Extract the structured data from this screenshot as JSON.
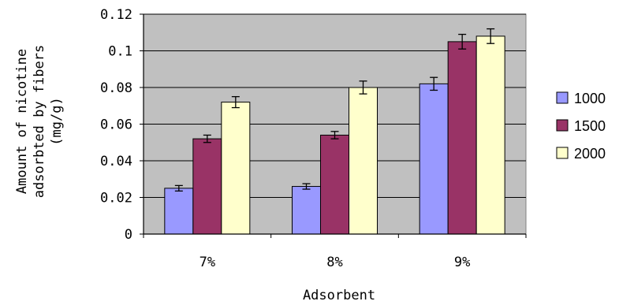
{
  "chart_data": {
    "type": "bar",
    "title": "",
    "xlabel": "Adsorbent",
    "ylabel_lines": [
      "Amount of nicotine",
      "adsorbted by fibers",
      "(mg/g)"
    ],
    "categories": [
      "7%",
      "8%",
      "9%"
    ],
    "series": [
      {
        "name": "1000",
        "color": "#9999ff",
        "values": [
          0.025,
          0.026,
          0.082
        ],
        "errors": [
          0.0015,
          0.0015,
          0.0035
        ]
      },
      {
        "name": "1500",
        "color": "#993366",
        "values": [
          0.052,
          0.054,
          0.105
        ],
        "errors": [
          0.002,
          0.002,
          0.004
        ]
      },
      {
        "name": "2000",
        "color": "#ffffcc",
        "values": [
          0.072,
          0.08,
          0.108
        ],
        "errors": [
          0.003,
          0.0035,
          0.004
        ]
      }
    ],
    "ylim": [
      0,
      0.12
    ],
    "yticks": [
      "0",
      "0.02",
      "0.04",
      "0.06",
      "0.08",
      "0.1",
      "0.12"
    ],
    "grid": true,
    "plot_background": "#c0c0c0",
    "legend_position": "right"
  }
}
